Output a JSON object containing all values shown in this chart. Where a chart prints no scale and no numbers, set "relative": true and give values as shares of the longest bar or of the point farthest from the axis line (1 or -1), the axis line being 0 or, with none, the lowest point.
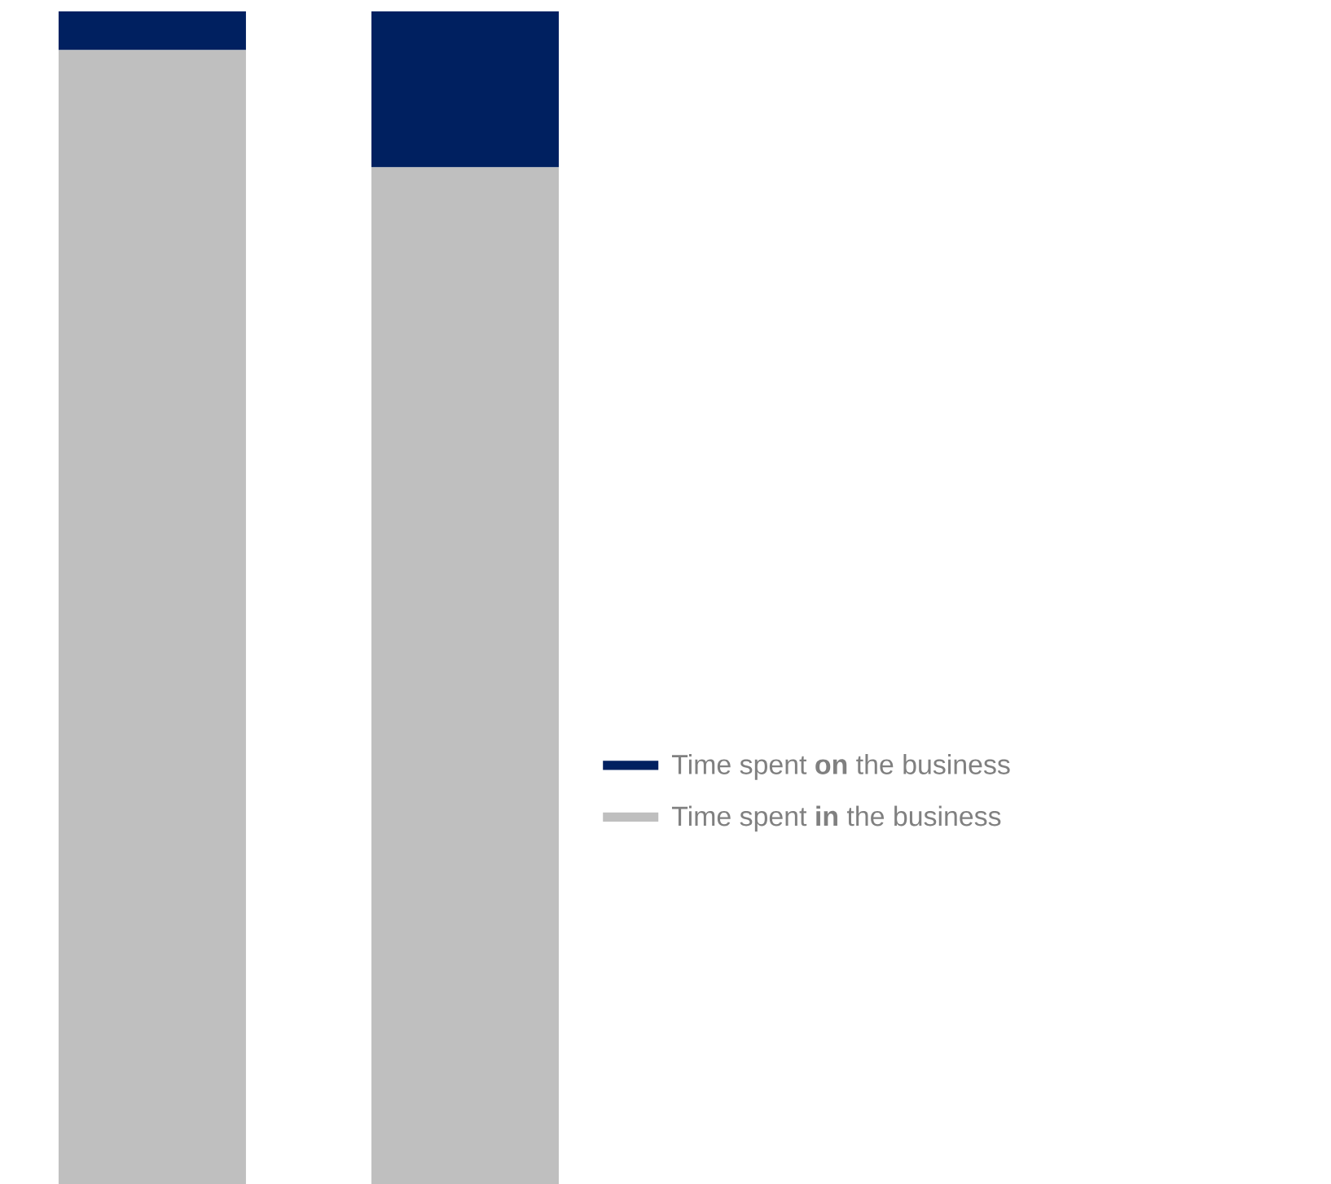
{
  "chart_data": {
    "type": "bar",
    "stacked": true,
    "relative": true,
    "legend": "right",
    "categories": [
      null,
      null
    ],
    "series": [
      {
        "name": "Time spent **in** the business",
        "color": "#bfbfbf",
        "values": [
          0.967,
          0.867
        ]
      },
      {
        "name": "Time spent **on** the business",
        "color": "#002060",
        "values": [
          0.033,
          0.133
        ]
      }
    ]
  }
}
